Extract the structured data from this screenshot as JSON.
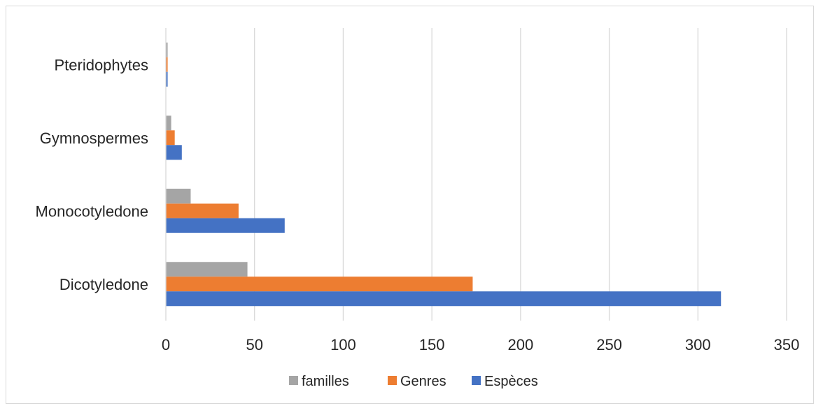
{
  "chart_data": {
    "type": "bar",
    "orientation": "horizontal",
    "categories": [
      "Dicotyledone",
      "Monocotyledone",
      "Gymnospermes",
      "Pteridophytes"
    ],
    "series": [
      {
        "name": "Espèces",
        "color": "#4472C4",
        "values": [
          313,
          67,
          9,
          1
        ]
      },
      {
        "name": "Genres",
        "color": "#ED7D31",
        "values": [
          173,
          41,
          5,
          1
        ]
      },
      {
        "name": "familles",
        "color": "#A5A5A5",
        "values": [
          46,
          14,
          3,
          1
        ]
      }
    ],
    "xlim": [
      0,
      350
    ],
    "xticks": [
      "0",
      "50",
      "100",
      "150",
      "200",
      "250",
      "300",
      "350"
    ],
    "grid": true,
    "legend_position": "bottom",
    "legend_order": [
      "familles",
      "Genres",
      "Espèces"
    ]
  }
}
